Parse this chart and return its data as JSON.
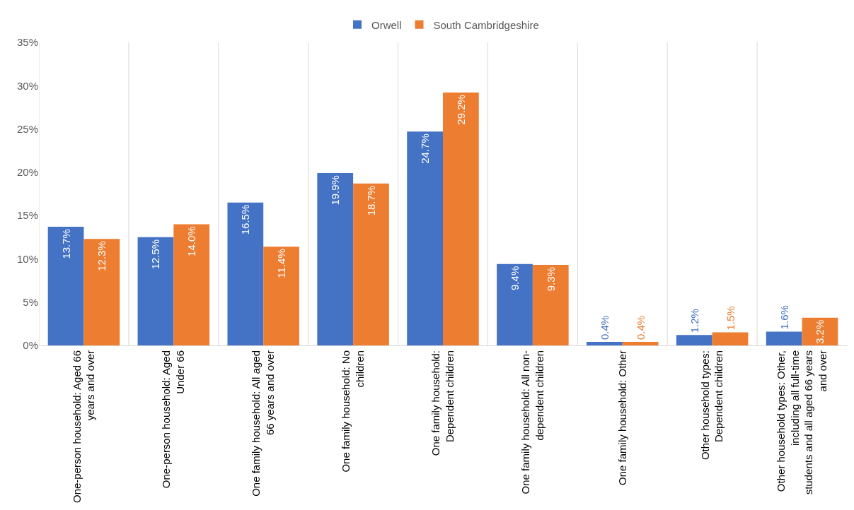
{
  "chart_data": {
    "type": "bar",
    "categories": [
      "One-person household: Aged 66 years and over",
      "One-person household: Aged Under 66",
      "One family household: All aged 66 years and over",
      "One family household: No children",
      "One family household: Dependent children",
      "One family household: All non-dependent children",
      "One family household: Other",
      "Other household types: Dependent children",
      "Other household types: Other, including all full-time students and all aged 66 years and over"
    ],
    "series": [
      {
        "name": "Orwell",
        "color": "#4472c4",
        "values": [
          13.7,
          12.5,
          16.5,
          19.9,
          24.7,
          9.4,
          0.4,
          1.2,
          1.6
        ],
        "value_labels": [
          "13.7%",
          "12.5%",
          "16.5%",
          "19.9%",
          "24.7%",
          "9.4%",
          "0.4%",
          "1.2%",
          "1.6%"
        ]
      },
      {
        "name": "South Cambridgeshire",
        "color": "#ed7d31",
        "values": [
          12.3,
          14.0,
          11.4,
          18.7,
          29.2,
          9.3,
          0.4,
          1.5,
          3.2
        ],
        "value_labels": [
          "12.3%",
          "14.0%",
          "11.4%",
          "18.7%",
          "29.2%",
          "9.3%",
          "0.4%",
          "1.5%",
          "3.2%"
        ]
      }
    ],
    "ylim": [
      0,
      35
    ],
    "yticks": [
      {
        "value": 0,
        "label": "0%"
      },
      {
        "value": 5,
        "label": "5%"
      },
      {
        "value": 10,
        "label": "10%"
      },
      {
        "value": 15,
        "label": "15%"
      },
      {
        "value": 20,
        "label": "20%"
      },
      {
        "value": 25,
        "label": "25%"
      },
      {
        "value": 30,
        "label": "30%"
      },
      {
        "value": 35,
        "label": "35%"
      }
    ],
    "grid": "x",
    "legend": "top"
  }
}
